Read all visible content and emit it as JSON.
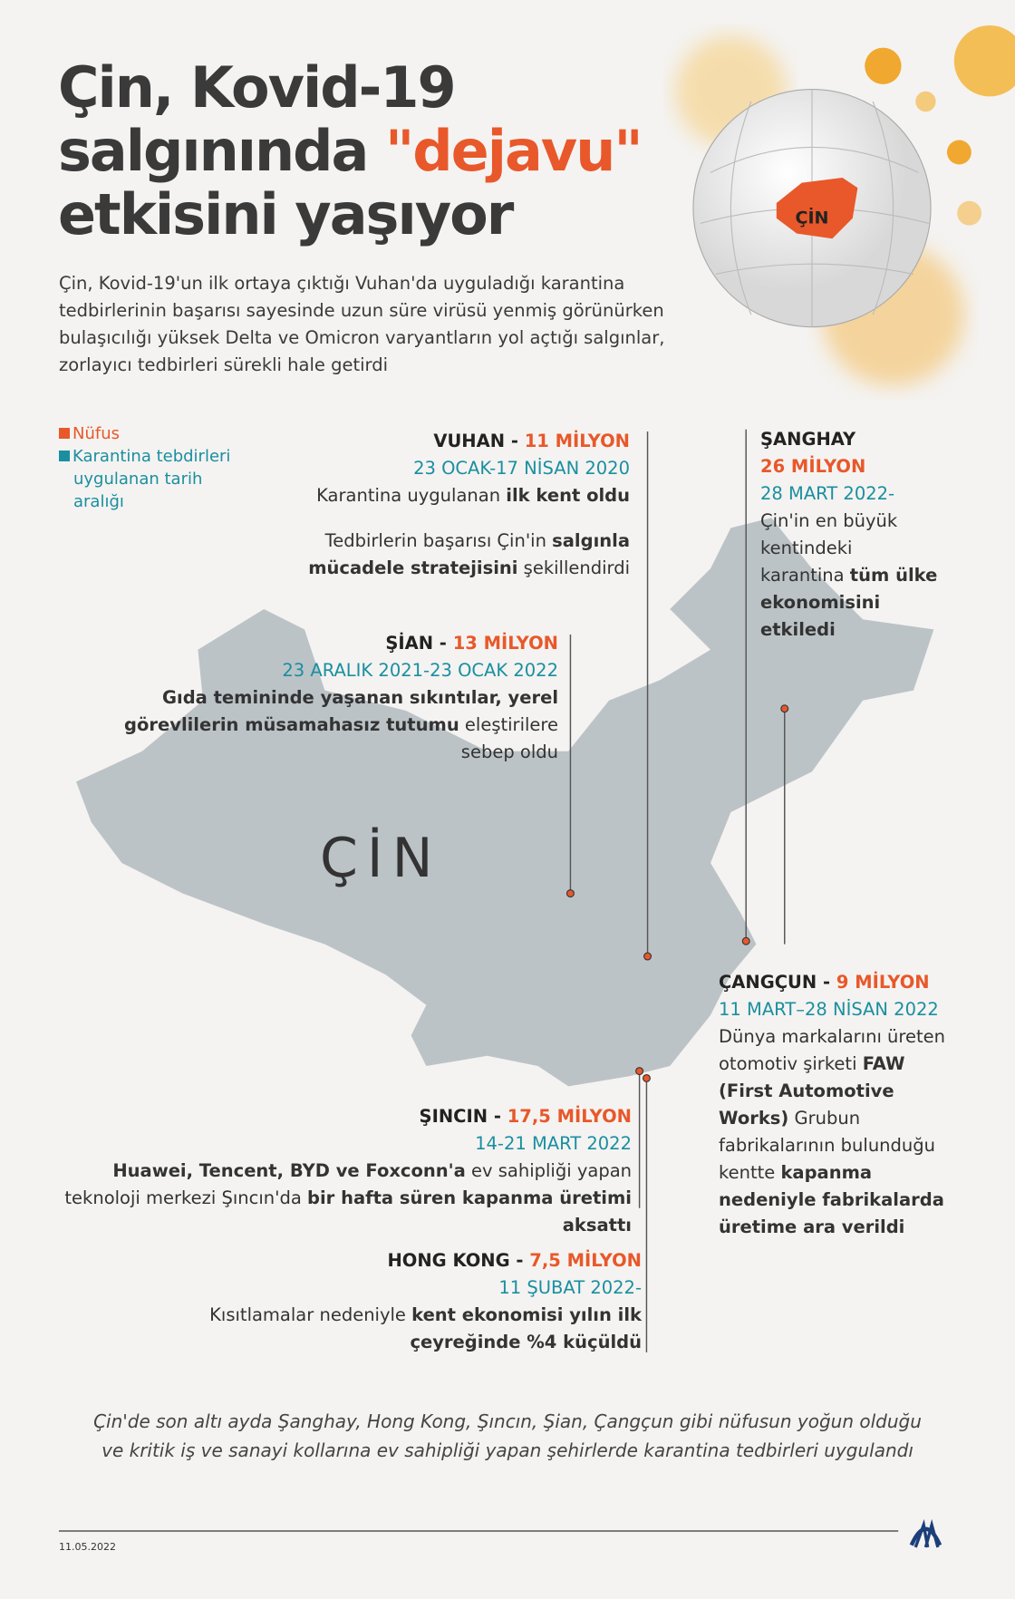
{
  "title": {
    "line1": "Çin, Kovid-19",
    "line2a": "salgınında ",
    "line2b": "\"dejavu\"",
    "line3": "etkisini yaşıyor"
  },
  "intro": "Çin, Kovid-19'un ilk ortaya çıktığı Vuhan'da uyguladığı karantina tedbirlerinin başarısı sayesinde uzun süre virüsü yenmiş görünürken bulaşıcılığı yüksek Delta ve Omicron varyantların yol açtığı salgınlar, zorlayıcı tedbirleri sürekli hale getirdi",
  "globe_label": "ÇİN",
  "legend": {
    "population": "Nüfus",
    "dates1": "Karantina tebdirleri",
    "dates2": "uygulanan tarih",
    "dates3": "aralığı"
  },
  "colors": {
    "population": "#e8582a",
    "dates": "#1a8fa0",
    "map": "#bcc3c7"
  },
  "map_label": "ÇİN",
  "cities": {
    "vuhan": {
      "name": "VUHAN - ",
      "pop": "11 MİLYON",
      "date": "23 OCAK-17 NİSAN 2020",
      "t1": "Karantina uygulanan ",
      "b1": "ilk kent oldu",
      "t2": "Tedbirlerin başarısı Çin'in ",
      "b2": "salgınla mücadele stratejisini",
      "t3": " şekillendirdi"
    },
    "sian": {
      "name": "ŞİAN - ",
      "pop": "13 MİLYON",
      "date": "23 ARALIK 2021-23 OCAK 2022",
      "b1": "Gıda temininde yaşanan sıkıntılar, yerel görevlilerin müsamahasız tutumu",
      "t1": " eleştirilere sebep oldu"
    },
    "sanghay": {
      "name": "ŞANGHAY",
      "pop": "26 MİLYON",
      "date": "28 MART 2022-",
      "t1": "Çin'in en büyük kentindeki karantina ",
      "b1": "tüm ülke ekonomisini etkiledi"
    },
    "cangcun": {
      "name": "ÇANGÇUN - ",
      "pop": "9 MİLYON",
      "date": "11 MART–28 NİSAN 2022",
      "t1": "Dünya markalarını üreten otomotiv şirketi ",
      "b1": "FAW (First Automotive Works)",
      "t2": " Grubun fabrikalarının bulunduğu kentte ",
      "b2": "kapanma nedeniyle fabrikalarda üretime ara verildi"
    },
    "sincin": {
      "name": "ŞINCIN - ",
      "pop": "17,5 MİLYON",
      "date": "14-21 MART 2022",
      "b1": "Huawei, Tencent, BYD ve Foxconn'a",
      "t1": " ev sahipliği yapan teknoloji merkezi Şıncın'da ",
      "b2": "bir hafta süren kapanma üretimi aksattı"
    },
    "hongkong": {
      "name": "HONG KONG - ",
      "pop": "7,5 MİLYON",
      "date": "11 ŞUBAT 2022-",
      "t1": "Kısıtlamalar nedeniyle ",
      "b1": "kent ekonomisi yılın ilk çeyreğinde %4 küçüldü"
    }
  },
  "footer": {
    "note": "Çin'de son altı ayda Şanghay, Hong Kong, Şıncın, Şian, Çangçun gibi nüfusun yoğun olduğu ve kritik iş ve sanayi kollarına ev sahipliği yapan şehirlerde karantina tedbirleri uygulandı",
    "date": "11.05.2022",
    "logo": "AA"
  }
}
